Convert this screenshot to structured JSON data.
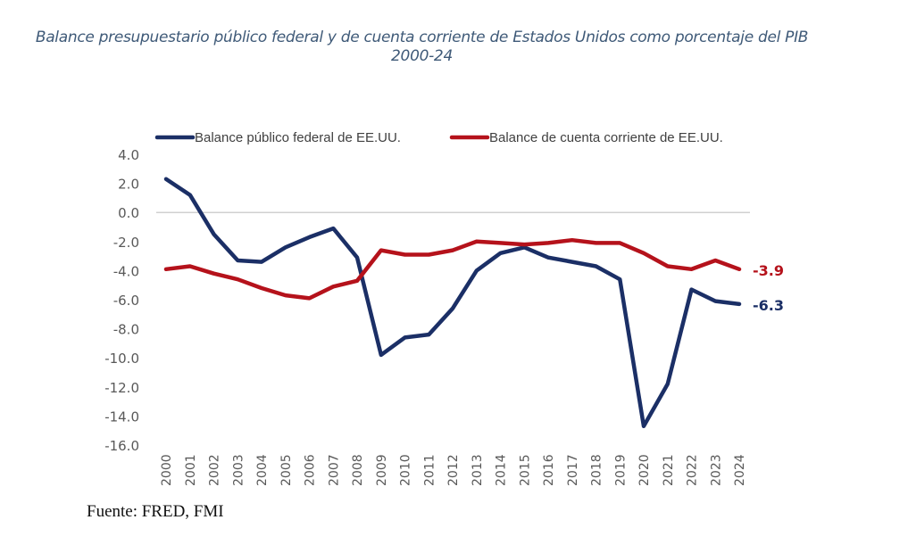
{
  "chart_data": {
    "type": "line",
    "title": "Balance presupuestario público federal y de cuenta corriente de Estados Unidos como porcentaje del PIB",
    "subtitle": "2000-24",
    "xlabel": "",
    "ylabel": "",
    "x": [
      "2000",
      "2001",
      "2002",
      "2003",
      "2004",
      "2005",
      "2006",
      "2007",
      "2008",
      "2009",
      "2010",
      "2011",
      "2012",
      "2013",
      "2014",
      "2015",
      "2016",
      "2017",
      "2018",
      "2019",
      "2020",
      "2021",
      "2022",
      "2023",
      "2024"
    ],
    "ylim": [
      -16,
      4
    ],
    "yticks": [
      4,
      2,
      0,
      -2,
      -4,
      -6,
      -8,
      -10,
      -12,
      -14,
      -16
    ],
    "ytick_labels": [
      "4.0",
      "2.0",
      "0.0",
      "-2.0",
      "-4.0",
      "-6.0",
      "-8.0",
      "-10.0",
      "-12.0",
      "-14.0",
      "-16.0"
    ],
    "grid": false,
    "zero_line": true,
    "legend_position": "top",
    "series": [
      {
        "name": "Balance público federal de EE.UU.",
        "color": "#1b2f66",
        "values": [
          2.3,
          1.2,
          -1.5,
          -3.3,
          -3.4,
          -2.4,
          -1.7,
          -1.1,
          -3.1,
          -9.8,
          -8.6,
          -8.4,
          -6.6,
          -4.0,
          -2.8,
          -2.4,
          -3.1,
          -3.4,
          -3.7,
          -4.6,
          -14.7,
          -11.8,
          -5.3,
          -6.1,
          -6.3
        ],
        "end_label": "-6.3"
      },
      {
        "name": "Balance de cuenta corriente de EE.UU.",
        "color": "#b5121b",
        "values": [
          -3.9,
          -3.7,
          -4.2,
          -4.6,
          -5.2,
          -5.7,
          -5.9,
          -5.1,
          -4.7,
          -2.6,
          -2.9,
          -2.9,
          -2.6,
          -2.0,
          -2.1,
          -2.2,
          -2.1,
          -1.9,
          -2.1,
          -2.1,
          -2.8,
          -3.7,
          -3.9,
          -3.3,
          -3.9
        ],
        "end_label": "-3.9"
      }
    ]
  },
  "source": "Fuente: FRED, FMI"
}
